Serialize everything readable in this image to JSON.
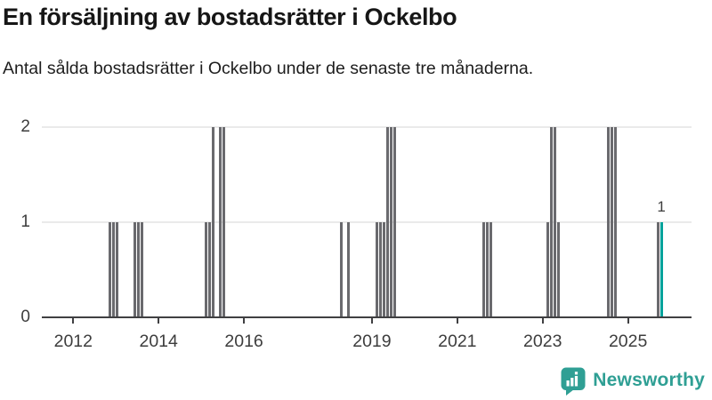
{
  "header": {
    "title": "En försäljning av bostadsrätter i Ockelbo",
    "subtitle": "Antal sålda bostadsrätter i Ockelbo under de senaste tre månaderna."
  },
  "footer": {
    "brand": "Newsworthy"
  },
  "colors": {
    "bar": "#6a6a6e",
    "highlight": "#00a29b",
    "brand": "#2f9f94",
    "axis": "#404042",
    "grid": "#eaeaea",
    "title_text": "#161616",
    "tick_text": "#3d3d3d"
  },
  "chart_data": {
    "type": "bar",
    "title": "En försäljning av bostadsrätter i Ockelbo",
    "subtitle": "Antal sålda bostadsrätter i Ockelbo under de senaste tre månaderna.",
    "xlabel": "",
    "ylabel": "",
    "y_ticks": [
      0,
      1,
      2
    ],
    "ylim": [
      0,
      2
    ],
    "x_tick_years": [
      2012,
      2014,
      2016,
      2019,
      2021,
      2023,
      2025
    ],
    "x_range_months": [
      "2011-04",
      "2026-06"
    ],
    "grid": "horizontal",
    "legend": "none",
    "annotation": {
      "text": "1",
      "month": "2025-10"
    },
    "note": "monthly bars; all months not listed have value 0",
    "months_nonzero": [
      {
        "month": "2012-11",
        "value": 1
      },
      {
        "month": "2012-12",
        "value": 1
      },
      {
        "month": "2013-01",
        "value": 1
      },
      {
        "month": "2013-06",
        "value": 1
      },
      {
        "month": "2013-07",
        "value": 1
      },
      {
        "month": "2013-08",
        "value": 1
      },
      {
        "month": "2015-02",
        "value": 1
      },
      {
        "month": "2015-03",
        "value": 1
      },
      {
        "month": "2015-04",
        "value": 2
      },
      {
        "month": "2015-06",
        "value": 2
      },
      {
        "month": "2015-07",
        "value": 2
      },
      {
        "month": "2018-04",
        "value": 1
      },
      {
        "month": "2018-06",
        "value": 1
      },
      {
        "month": "2019-02",
        "value": 1
      },
      {
        "month": "2019-03",
        "value": 1
      },
      {
        "month": "2019-04",
        "value": 1
      },
      {
        "month": "2019-05",
        "value": 2
      },
      {
        "month": "2019-06",
        "value": 2
      },
      {
        "month": "2019-07",
        "value": 2
      },
      {
        "month": "2021-08",
        "value": 1
      },
      {
        "month": "2021-09",
        "value": 1
      },
      {
        "month": "2021-10",
        "value": 1
      },
      {
        "month": "2023-02",
        "value": 1
      },
      {
        "month": "2023-03",
        "value": 2
      },
      {
        "month": "2023-04",
        "value": 2
      },
      {
        "month": "2023-05",
        "value": 1
      },
      {
        "month": "2024-07",
        "value": 2
      },
      {
        "month": "2024-08",
        "value": 2
      },
      {
        "month": "2024-09",
        "value": 2
      },
      {
        "month": "2025-09",
        "value": 1
      },
      {
        "month": "2025-10",
        "value": 1,
        "highlight": true
      }
    ]
  }
}
